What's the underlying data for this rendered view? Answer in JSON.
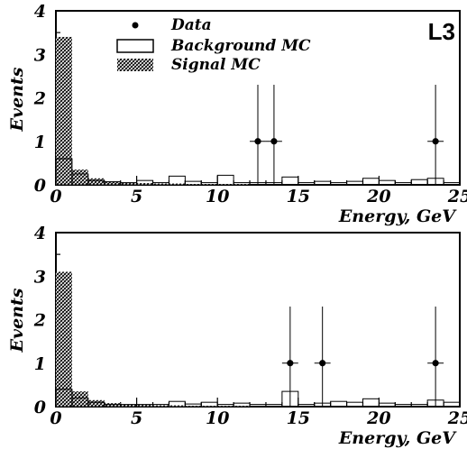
{
  "chart_data": [
    {
      "type": "bar",
      "tag": "L3",
      "xlabel": "Energy, GeV",
      "ylabel": "Events",
      "xlim": [
        0,
        25
      ],
      "ylim": [
        0,
        4
      ],
      "xticks": [
        "0",
        "5",
        "10",
        "15",
        "20",
        "25"
      ],
      "yticks": [
        "0",
        "1",
        "2",
        "3",
        "4"
      ],
      "legend": {
        "placement": "top-left",
        "entries": [
          {
            "label": "Data",
            "style": "marker"
          },
          {
            "label": "Background MC",
            "style": "open-box"
          },
          {
            "label": "Signal MC",
            "style": "hatched"
          }
        ]
      },
      "series": [
        {
          "name": "Signal MC",
          "style": "hatched",
          "bin_width": 1,
          "bins": [
            [
              0,
              3.4
            ],
            [
              1,
              0.35
            ],
            [
              2,
              0.15
            ],
            [
              3,
              0.08
            ],
            [
              4,
              0.05
            ],
            [
              5,
              0.04
            ],
            [
              6,
              0.03
            ],
            [
              7,
              0.03
            ],
            [
              8,
              0.02
            ],
            [
              9,
              0.02
            ],
            [
              10,
              0.02
            ],
            [
              11,
              0.02
            ]
          ]
        },
        {
          "name": "Background MC",
          "style": "open-box",
          "bin_width": 1,
          "bins": [
            [
              0,
              0.6
            ],
            [
              1,
              0.25
            ],
            [
              2,
              0.1
            ],
            [
              3,
              0.07
            ],
            [
              4,
              0.05
            ],
            [
              5,
              0.1
            ],
            [
              6,
              0.05
            ],
            [
              7,
              0.2
            ],
            [
              8,
              0.08
            ],
            [
              9,
              0.05
            ],
            [
              10,
              0.22
            ],
            [
              11,
              0.05
            ],
            [
              12,
              0.05
            ],
            [
              13,
              0.05
            ],
            [
              14,
              0.18
            ],
            [
              15,
              0.05
            ],
            [
              16,
              0.08
            ],
            [
              17,
              0.05
            ],
            [
              18,
              0.08
            ],
            [
              19,
              0.15
            ],
            [
              20,
              0.1
            ],
            [
              21,
              0.05
            ],
            [
              22,
              0.12
            ],
            [
              23,
              0.15
            ],
            [
              24,
              0.05
            ]
          ]
        },
        {
          "name": "Data",
          "style": "points",
          "points": [
            {
              "x": 12.5,
              "y": 1,
              "xerr": 0.5,
              "yerr_low": 1,
              "yerr_high": 1.3
            },
            {
              "x": 13.5,
              "y": 1,
              "xerr": 0.5,
              "yerr_low": 1,
              "yerr_high": 1.3
            },
            {
              "x": 23.5,
              "y": 1,
              "xerr": 0.5,
              "yerr_low": 1,
              "yerr_high": 1.3
            }
          ]
        }
      ]
    },
    {
      "type": "bar",
      "xlabel": "Energy, GeV",
      "ylabel": "Events",
      "xlim": [
        0,
        25
      ],
      "ylim": [
        0,
        4
      ],
      "xticks": [
        "0",
        "5",
        "10",
        "15",
        "20",
        "25"
      ],
      "yticks": [
        "0",
        "1",
        "2",
        "3",
        "4"
      ],
      "series": [
        {
          "name": "Signal MC",
          "style": "hatched",
          "bin_width": 1,
          "bins": [
            [
              0,
              3.1
            ],
            [
              1,
              0.35
            ],
            [
              2,
              0.15
            ],
            [
              3,
              0.08
            ],
            [
              4,
              0.05
            ],
            [
              5,
              0.04
            ],
            [
              6,
              0.03
            ],
            [
              7,
              0.03
            ],
            [
              8,
              0.02
            ],
            [
              9,
              0.02
            ],
            [
              10,
              0.02
            ],
            [
              11,
              0.02
            ]
          ]
        },
        {
          "name": "Background MC",
          "style": "open-box",
          "bin_width": 1,
          "bins": [
            [
              0,
              0.4
            ],
            [
              1,
              0.2
            ],
            [
              2,
              0.1
            ],
            [
              3,
              0.05
            ],
            [
              4,
              0.05
            ],
            [
              5,
              0.05
            ],
            [
              6,
              0.05
            ],
            [
              7,
              0.12
            ],
            [
              8,
              0.06
            ],
            [
              9,
              0.1
            ],
            [
              10,
              0.05
            ],
            [
              11,
              0.08
            ],
            [
              12,
              0.05
            ],
            [
              13,
              0.05
            ],
            [
              14,
              0.35
            ],
            [
              15,
              0.05
            ],
            [
              16,
              0.08
            ],
            [
              17,
              0.12
            ],
            [
              18,
              0.1
            ],
            [
              19,
              0.18
            ],
            [
              20,
              0.08
            ],
            [
              21,
              0.05
            ],
            [
              22,
              0.05
            ],
            [
              23,
              0.15
            ],
            [
              24,
              0.1
            ]
          ]
        },
        {
          "name": "Data",
          "style": "points",
          "points": [
            {
              "x": 14.5,
              "y": 1,
              "xerr": 0.5,
              "yerr_low": 1,
              "yerr_high": 1.3
            },
            {
              "x": 16.5,
              "y": 1,
              "xerr": 0.5,
              "yerr_low": 1,
              "yerr_high": 1.3
            },
            {
              "x": 23.5,
              "y": 1,
              "xerr": 0.5,
              "yerr_low": 1,
              "yerr_high": 1.3
            }
          ]
        }
      ]
    }
  ]
}
